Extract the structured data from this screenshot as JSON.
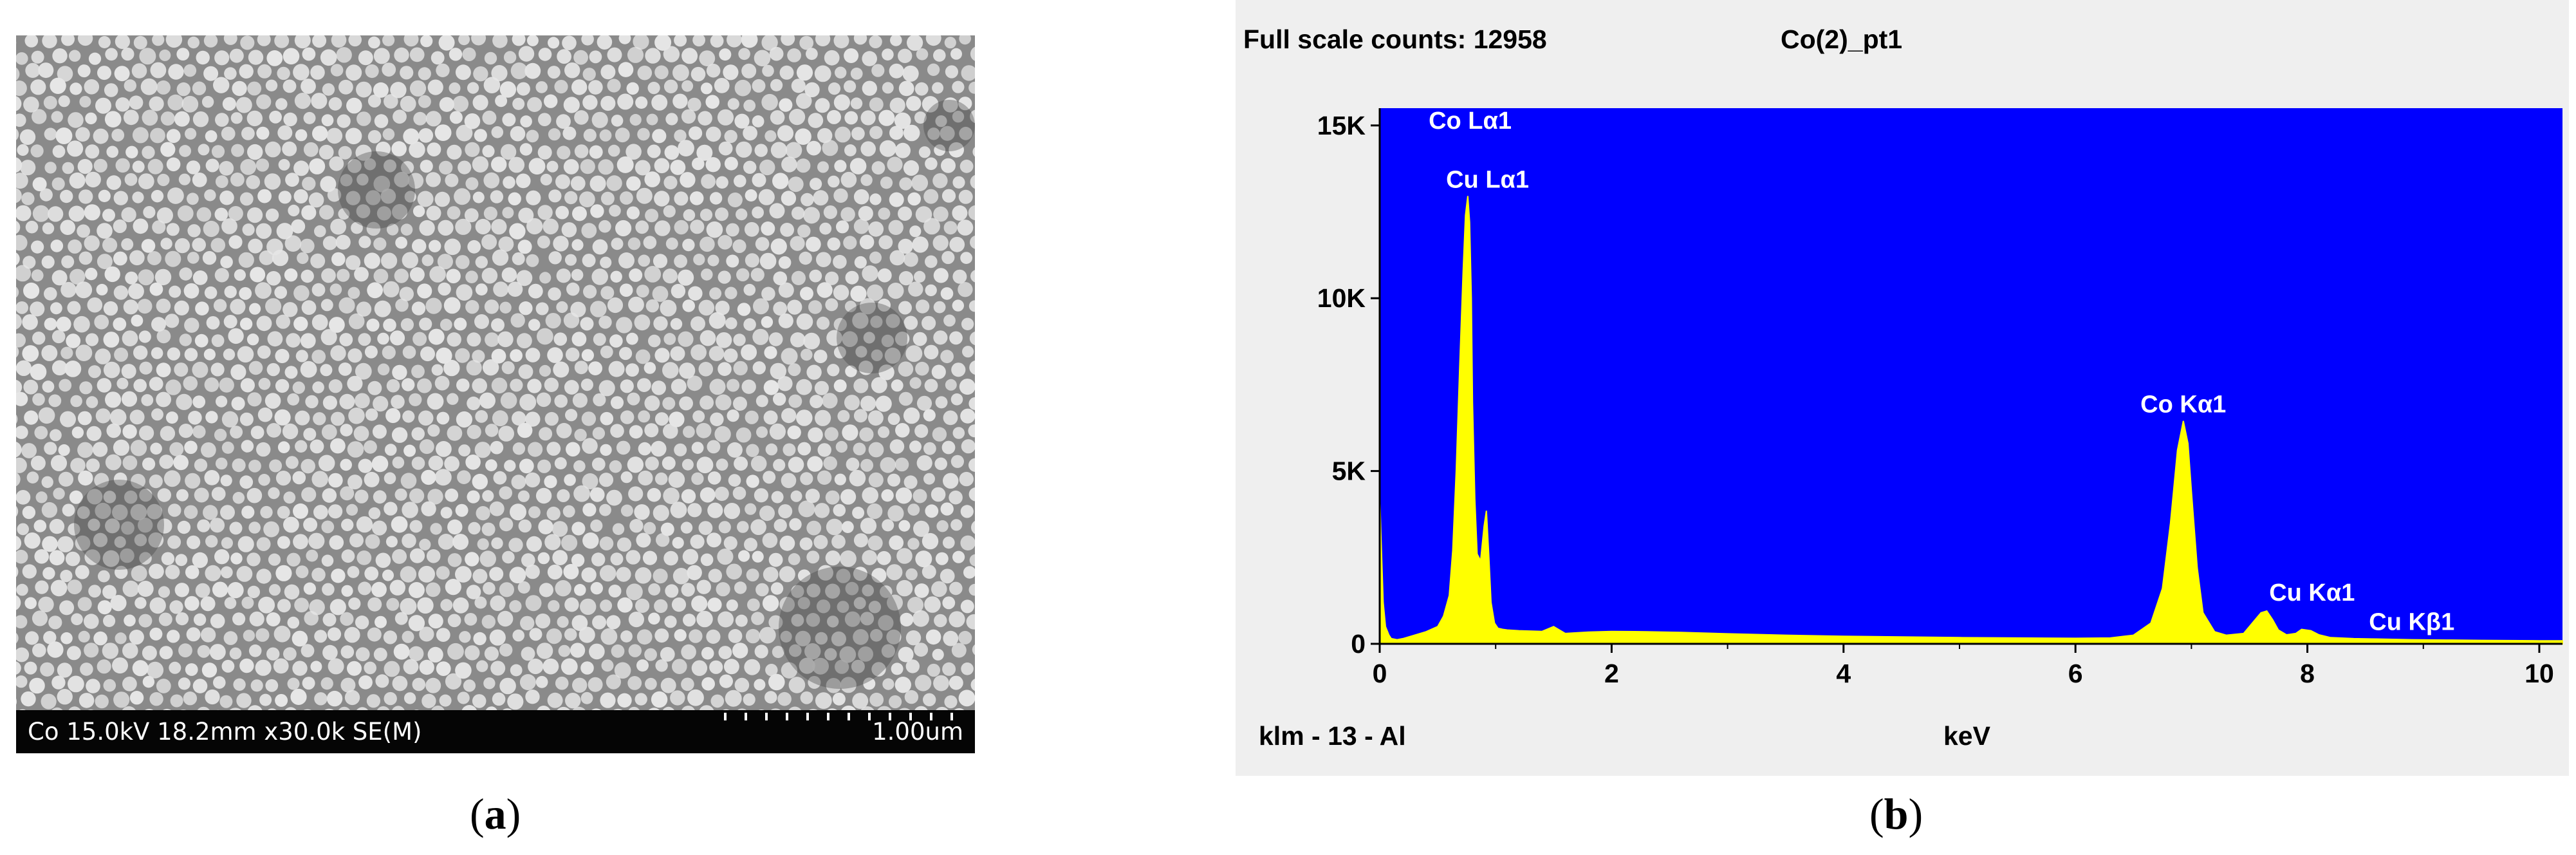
{
  "panel_a": {
    "caption_open": "(",
    "caption_letter": "a",
    "caption_close": ")",
    "info_text": "Co 15.0kV 18.2mm x30.0k SE(M)",
    "scale_text": "1.00um",
    "colors": {
      "background": "#8a8a8a",
      "particle": "#e6e6e6",
      "bar": "#050505"
    }
  },
  "panel_b": {
    "caption_open": "(",
    "caption_letter": "b",
    "caption_close": ")",
    "full_scale_label": "Full scale counts: 12958",
    "sample_label": "Co(2)_pt1",
    "footer_left": "klm - 13 - Al",
    "colors": {
      "plot_bg": "#0000ff",
      "spectrum": "#ffff00",
      "frame": "#efefef"
    }
  },
  "chart_data": {
    "type": "area",
    "title": "Co(2)_pt1",
    "xlabel": "keV",
    "ylabel": "",
    "xlim": [
      0,
      10.2
    ],
    "ylim": [
      0,
      15500
    ],
    "x_ticks": [
      0,
      2,
      4,
      6,
      8,
      10
    ],
    "x_tick_labels": [
      "0",
      "2",
      "4",
      "6",
      "8",
      "10"
    ],
    "y_ticks": [
      0,
      5000,
      10000,
      15000
    ],
    "y_tick_labels": [
      "0",
      "5K",
      "10K",
      "15K"
    ],
    "full_scale_counts": 12958,
    "series": [
      {
        "name": "EDS spectrum",
        "x": [
          0.0,
          0.01,
          0.03,
          0.05,
          0.08,
          0.1,
          0.15,
          0.2,
          0.3,
          0.4,
          0.5,
          0.55,
          0.6,
          0.63,
          0.66,
          0.69,
          0.72,
          0.74,
          0.76,
          0.775,
          0.79,
          0.8,
          0.82,
          0.84,
          0.87,
          0.9,
          0.92,
          0.94,
          0.96,
          0.99,
          1.02,
          1.06,
          1.1,
          1.2,
          1.4,
          1.5,
          1.6,
          1.8,
          2.0,
          2.3,
          2.6,
          3.0,
          3.5,
          4.0,
          4.5,
          5.0,
          5.5,
          6.0,
          6.3,
          6.5,
          6.65,
          6.75,
          6.82,
          6.88,
          6.93,
          6.97,
          7.0,
          7.05,
          7.1,
          7.2,
          7.3,
          7.45,
          7.55,
          7.6,
          7.65,
          7.7,
          7.75,
          7.82,
          7.9,
          7.95,
          8.03,
          8.1,
          8.2,
          8.4,
          8.6,
          8.9,
          9.2,
          9.5,
          10.0,
          10.2
        ],
        "y": [
          4400,
          3200,
          1200,
          500,
          250,
          150,
          120,
          150,
          250,
          350,
          500,
          800,
          1400,
          2700,
          5000,
          8000,
          10800,
          12400,
          12958,
          12200,
          10000,
          7000,
          4200,
          2600,
          2400,
          3400,
          3850,
          2600,
          1200,
          600,
          450,
          420,
          400,
          380,
          360,
          500,
          300,
          340,
          360,
          350,
          330,
          290,
          250,
          220,
          200,
          180,
          170,
          160,
          170,
          250,
          600,
          1600,
          3500,
          5600,
          6450,
          5800,
          4400,
          2200,
          900,
          350,
          250,
          300,
          700,
          900,
          950,
          700,
          400,
          260,
          300,
          420,
          380,
          260,
          180,
          150,
          140,
          120,
          110,
          100,
          90,
          90
        ]
      }
    ],
    "annotations": [
      {
        "text": "Co Lα1",
        "x": 0.78,
        "y": 14900
      },
      {
        "text": "Cu Lα1",
        "x": 0.93,
        "y": 13200
      },
      {
        "text": "Co Kα1",
        "x": 6.93,
        "y": 6700
      },
      {
        "text": "Cu Kα1",
        "x": 8.04,
        "y": 1250
      },
      {
        "text": "Cu Kβ1",
        "x": 8.9,
        "y": 400
      }
    ]
  }
}
